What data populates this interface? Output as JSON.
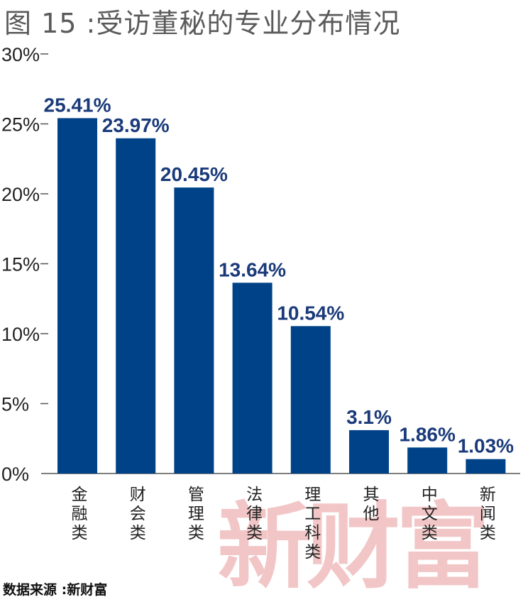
{
  "title": "图 15 :受访董秘的专业分布情况",
  "source": "数据来源 :新财富",
  "watermark": "新财富",
  "colors": {
    "bar": "#004287",
    "value_label": "#1a3a7a",
    "watermark": "#f2c6c6"
  },
  "chart_data": {
    "type": "bar",
    "title": "图 15 :受访董秘的专业分布情况",
    "xlabel": "",
    "ylabel": "",
    "ylim": [
      0,
      30
    ],
    "yticks": [
      "0%",
      "5%",
      "10%",
      "15%",
      "20%",
      "25%",
      "30%"
    ],
    "categories": [
      "金融类",
      "财会类",
      "管理类",
      "法律类",
      "理工科类",
      "其他",
      "中文类",
      "新闻类"
    ],
    "values": [
      25.41,
      23.97,
      20.45,
      13.64,
      10.54,
      3.1,
      1.86,
      1.03
    ],
    "value_labels": [
      "25.41%",
      "23.97%",
      "20.45%",
      "13.64%",
      "10.54%",
      "3.1%",
      "1.86%",
      "1.03%"
    ],
    "grid": false,
    "legend": "none"
  }
}
